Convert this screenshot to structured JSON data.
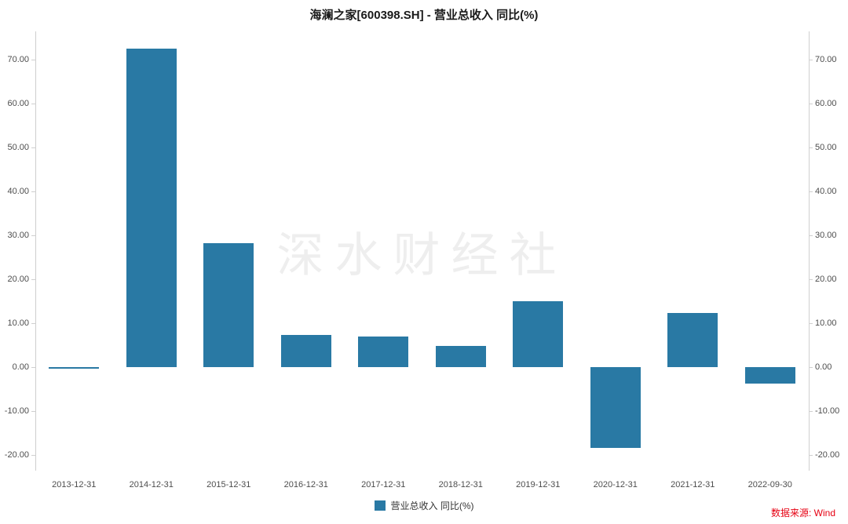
{
  "title": "海澜之家[600398.SH] - 营业总收入 同比(%)",
  "watermark": "深水财经社",
  "legend_label": "营业总收入 同比(%)",
  "source_text": "数据来源: Wind",
  "colors": {
    "bar": "#2979a4",
    "axis": "#cfcfcf",
    "tick_text": "#4d4d4d",
    "source_text": "#e60012"
  },
  "chart_data": {
    "type": "bar",
    "title": "海澜之家[600398.SH] - 营业总收入 同比(%)",
    "categories": [
      "2013-12-31",
      "2014-12-31",
      "2015-12-31",
      "2016-12-31",
      "2017-12-31",
      "2018-12-31",
      "2019-12-31",
      "2020-12-31",
      "2021-12-31",
      "2022-09-30"
    ],
    "series": [
      {
        "name": "营业总收入 同比(%)",
        "values": [
          -0.3,
          72.56,
          28.3,
          7.39,
          7.06,
          4.89,
          15.09,
          -18.27,
          12.41,
          -3.63
        ]
      }
    ],
    "xlabel": "",
    "ylabel": "",
    "ylim": [
      -23.5,
      76.5
    ],
    "yticks": [
      -20,
      -10,
      0,
      10,
      20,
      30,
      40,
      50,
      60,
      70
    ],
    "ytick_format": "0.00",
    "grid": false,
    "legend_position": "bottom",
    "bar_color": "#2979a4"
  }
}
